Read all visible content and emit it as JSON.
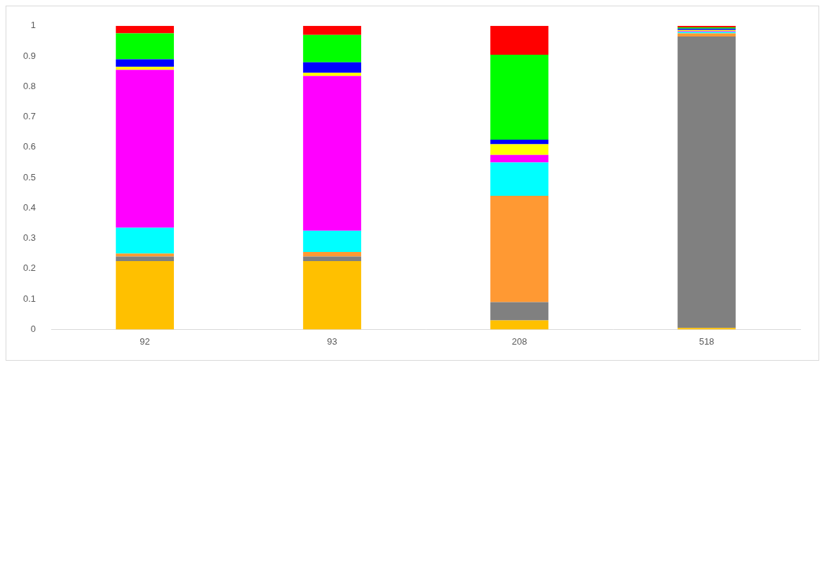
{
  "chart_data": {
    "type": "bar",
    "stacked": true,
    "grid": false,
    "categories": [
      "92",
      "93",
      "208",
      "518"
    ],
    "series": [
      {
        "color": "#ffc000",
        "values": [
          0.225,
          0.225,
          0.03,
          0.005
        ]
      },
      {
        "color": "#808080",
        "values": [
          0.015,
          0.015,
          0.06,
          0.96
        ]
      },
      {
        "color": "#ff9933",
        "values": [
          0.01,
          0.015,
          0.35,
          0.01
        ]
      },
      {
        "color": "#00ffff",
        "values": [
          0.085,
          0.07,
          0.11,
          0.005
        ]
      },
      {
        "color": "#ff00ff",
        "values": [
          0.52,
          0.51,
          0.025,
          0.003
        ]
      },
      {
        "color": "#ffff00",
        "values": [
          0.01,
          0.01,
          0.035,
          0.003
        ]
      },
      {
        "color": "#0000ff",
        "values": [
          0.025,
          0.035,
          0.015,
          0.005
        ]
      },
      {
        "color": "#00ff00",
        "values": [
          0.085,
          0.09,
          0.28,
          0.004
        ]
      },
      {
        "color": "#ff0000",
        "values": [
          0.025,
          0.03,
          0.095,
          0.005
        ]
      }
    ],
    "ylim": [
      0,
      1
    ],
    "yticks": [
      0,
      0.1,
      0.2,
      0.3,
      0.4,
      0.5,
      0.6,
      0.7,
      0.8,
      0.9,
      1
    ]
  }
}
